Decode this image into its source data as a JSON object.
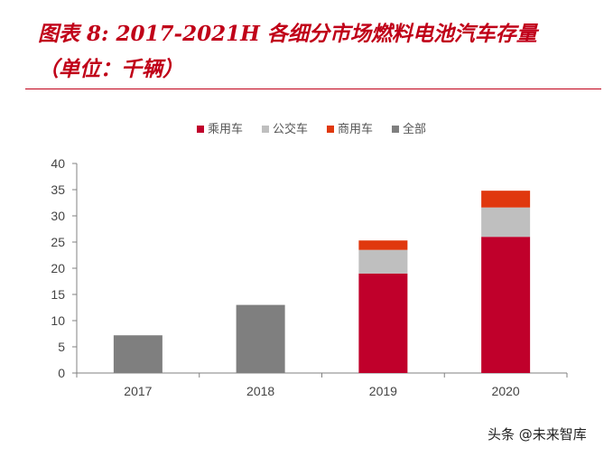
{
  "header": {
    "title_line1": "图表 8: 2017-2021H 各细分市场燃料电池汽车存量",
    "title_line2": "（单位：千辆）"
  },
  "colors": {
    "title": "#c00018",
    "passenger": "#c0002b",
    "bus": "#bfbfbf",
    "commercial": "#e0380e",
    "total": "#7f7f7f"
  },
  "chart_data": {
    "type": "bar",
    "stacked": true,
    "categories": [
      "2017",
      "2018",
      "2019",
      "2020"
    ],
    "series": [
      {
        "name": "乘用车",
        "color": "#c0002b",
        "values": [
          null,
          null,
          19.0,
          26.0
        ]
      },
      {
        "name": "公交车",
        "color": "#bfbfbf",
        "values": [
          null,
          null,
          4.5,
          5.6
        ]
      },
      {
        "name": "商用车",
        "color": "#e0380e",
        "values": [
          null,
          null,
          1.8,
          3.2
        ]
      },
      {
        "name": "全部",
        "color": "#7f7f7f",
        "values": [
          7.2,
          13.0,
          null,
          null
        ]
      }
    ],
    "ylim": [
      0,
      40
    ],
    "yticks": [
      0,
      5,
      10,
      15,
      20,
      25,
      30,
      35,
      40
    ],
    "legend_position": "top-center",
    "grid": false
  },
  "watermark": "头条 @未来智库"
}
